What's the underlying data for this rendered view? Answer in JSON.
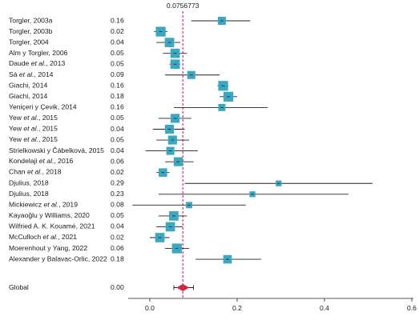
{
  "chart_data": {
    "type": "forest",
    "reference_label": "0.0756773",
    "reference_value": 0.0756773,
    "xlim": [
      0,
      0.6
    ],
    "x_ticks": [
      "0.0",
      "0.2",
      "0.4",
      "0.6"
    ],
    "x_tick_values": [
      0,
      0.2,
      0.4,
      0.6
    ],
    "colors": {
      "box": "#3aa8c1",
      "line": "#222222",
      "reference": "#e0298f",
      "diamond": "#d6253f"
    },
    "studies": [
      {
        "label": "Torgler, 2003a",
        "weight": "0.16",
        "est": 0.165,
        "lo": 0.095,
        "hi": 0.23,
        "size": 0.55
      },
      {
        "label": "Torgler, 2003b",
        "weight": "0.02",
        "est": 0.025,
        "lo": 0.01,
        "hi": 0.04,
        "size": 0.75
      },
      {
        "label": "Torgler, 2004",
        "weight": "0.04",
        "est": 0.045,
        "lo": 0.015,
        "hi": 0.07,
        "size": 0.7
      },
      {
        "label": "Alm y Torgler, 2006",
        "weight": "0.05",
        "est": 0.058,
        "lo": 0.03,
        "hi": 0.085,
        "size": 0.7
      },
      {
        "label": "Daude et al., 2013",
        "weight": "0.05",
        "est": 0.058,
        "lo": 0.045,
        "hi": 0.07,
        "size": 0.7
      },
      {
        "label": "Sá et al., 2014",
        "weight": "0.09",
        "est": 0.095,
        "lo": 0.035,
        "hi": 0.16,
        "size": 0.55
      },
      {
        "label": "Giachi, 2014",
        "weight": "0.16",
        "est": 0.168,
        "lo": 0.155,
        "hi": 0.18,
        "size": 0.75
      },
      {
        "label": "Giachi, 2014",
        "weight": "0.18",
        "est": 0.18,
        "lo": 0.16,
        "hi": 0.2,
        "size": 0.75
      },
      {
        "label": "Yeniçeri y Çevik, 2014",
        "weight": "0.16",
        "est": 0.165,
        "lo": 0.055,
        "hi": 0.27,
        "size": 0.45
      },
      {
        "label": "Yew et al., 2015",
        "weight": "0.05",
        "est": 0.058,
        "lo": 0.02,
        "hi": 0.095,
        "size": 0.65
      },
      {
        "label": "Yew et al., 2015",
        "weight": "0.04",
        "est": 0.045,
        "lo": 0.007,
        "hi": 0.08,
        "size": 0.65
      },
      {
        "label": "Yew et al., 2015",
        "weight": "0.05",
        "est": 0.052,
        "lo": 0.015,
        "hi": 0.09,
        "size": 0.65
      },
      {
        "label": "Strielkowski y Čábelková, 2015",
        "weight": "0.04",
        "est": 0.047,
        "lo": -0.01,
        "hi": 0.11,
        "size": 0.55
      },
      {
        "label": "Kondelaji et al., 2016",
        "weight": "0.06",
        "est": 0.065,
        "lo": 0.035,
        "hi": 0.1,
        "size": 0.65
      },
      {
        "label": "Chan et al., 2018",
        "weight": "0.02",
        "est": 0.03,
        "lo": 0.015,
        "hi": 0.045,
        "size": 0.6
      },
      {
        "label": "Djulius, 2018",
        "weight": "0.29",
        "est": 0.295,
        "lo": 0.08,
        "hi": 0.51,
        "size": 0.3
      },
      {
        "label": "Djulius, 2018",
        "weight": "0.23",
        "est": 0.235,
        "lo": 0.02,
        "hi": 0.455,
        "size": 0.3
      },
      {
        "label": "Mickiewicz et al., 2019",
        "weight": "0.08",
        "est": 0.09,
        "lo": -0.04,
        "hi": 0.22,
        "size": 0.35
      },
      {
        "label": "Kayaoğlu y Williams, 2020",
        "weight": "0.05",
        "est": 0.055,
        "lo": 0.02,
        "hi": 0.085,
        "size": 0.7
      },
      {
        "label": "Wilfried A. K. Kouamé, 2021",
        "weight": "0.04",
        "est": 0.047,
        "lo": 0.015,
        "hi": 0.075,
        "size": 0.7
      },
      {
        "label": "McCulloch et al., 2021",
        "weight": "0.02",
        "est": 0.023,
        "lo": 0.0,
        "hi": 0.045,
        "size": 0.7
      },
      {
        "label": "Moerenhout y Yang, 2022",
        "weight": "0.06",
        "est": 0.062,
        "lo": 0.035,
        "hi": 0.09,
        "size": 0.75
      },
      {
        "label": "Alexander y Balavac-Orlic, 2022",
        "weight": "0.18",
        "est": 0.178,
        "lo": 0.105,
        "hi": 0.255,
        "size": 0.6
      }
    ],
    "pooled": {
      "label": "Global",
      "weight": "0.00",
      "est": 0.0756773,
      "lo": 0.055,
      "hi": 0.1
    }
  }
}
